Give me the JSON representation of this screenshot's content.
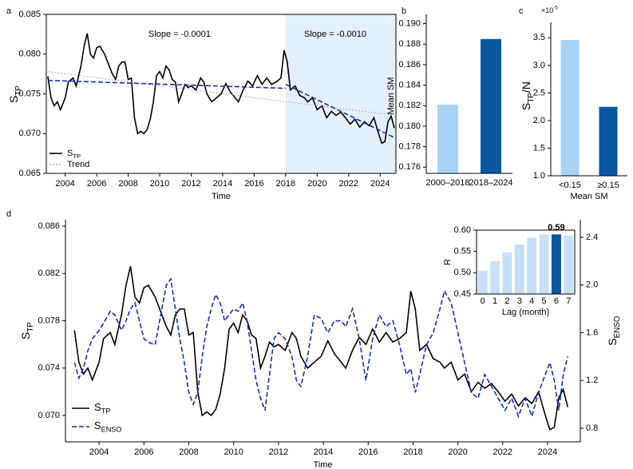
{
  "chart_data": [
    {
      "type": "line",
      "panel": "a",
      "xlabel": "Time",
      "ylabel": {
        "text": "S",
        "sub": "TP"
      },
      "annotations": [
        "Slope = -0.0001",
        "Slope = -0.0010"
      ],
      "xlim": [
        2002.8,
        2025.0
      ],
      "ylim": [
        0.065,
        0.085
      ],
      "xticks": [
        2004,
        2006,
        2008,
        2010,
        2012,
        2014,
        2016,
        2018,
        2020,
        2022,
        2024
      ],
      "yticks": [
        0.065,
        {
          "value": 0.07,
          "label": "0.070"
        },
        0.075,
        {
          "value": 0.08,
          "label": "0.080"
        },
        0.085
      ],
      "shade": [
        2018,
        2025
      ],
      "shade_color": "#e4f0fc",
      "x": [
        2002.9,
        2003.1,
        2003.3,
        2003.5,
        2003.7,
        2004.0,
        2004.2,
        2004.5,
        2004.7,
        2005.0,
        2005.2,
        2005.4,
        2005.6,
        2005.8,
        2006.0,
        2006.2,
        2006.5,
        2006.7,
        2007.0,
        2007.2,
        2007.4,
        2007.6,
        2007.8,
        2008.0,
        2008.2,
        2008.4,
        2008.6,
        2008.8,
        2009.0,
        2009.2,
        2009.4,
        2009.6,
        2009.8,
        2010.0,
        2010.2,
        2010.4,
        2010.6,
        2010.8,
        2011.0,
        2011.2,
        2011.4,
        2011.6,
        2011.8,
        2012.0,
        2012.3,
        2012.6,
        2012.8,
        2013.0,
        2013.3,
        2013.6,
        2013.9,
        2014.2,
        2014.5,
        2014.8,
        2015.0,
        2015.3,
        2015.6,
        2015.9,
        2016.2,
        2016.5,
        2016.8,
        2017.1,
        2017.4,
        2017.7,
        2017.9,
        2018.1,
        2018.3,
        2018.6,
        2018.9,
        2019.2,
        2019.4,
        2019.7,
        2020.0,
        2020.3,
        2020.6,
        2020.9,
        2021.2,
        2021.5,
        2021.8,
        2022.1,
        2022.4,
        2022.7,
        2023.0,
        2023.3,
        2023.6,
        2023.9,
        2024.1,
        2024.3,
        2024.5,
        2024.7,
        2024.9
      ],
      "series": [
        {
          "name": {
            "text": "S",
            "sub": "TP"
          },
          "color": "#000000",
          "style": "solid",
          "values": [
            0.0772,
            0.0745,
            0.0735,
            0.074,
            0.073,
            0.0745,
            0.0765,
            0.077,
            0.076,
            0.0785,
            0.081,
            0.0826,
            0.08,
            0.0795,
            0.0808,
            0.081,
            0.08,
            0.079,
            0.0775,
            0.0768,
            0.0785,
            0.079,
            0.079,
            0.0768,
            0.077,
            0.072,
            0.07,
            0.0703,
            0.07,
            0.0705,
            0.0718,
            0.074,
            0.0773,
            0.0778,
            0.077,
            0.0785,
            0.078,
            0.0768,
            0.0765,
            0.074,
            0.075,
            0.0762,
            0.0758,
            0.076,
            0.0755,
            0.077,
            0.0765,
            0.075,
            0.074,
            0.0745,
            0.075,
            0.0763,
            0.0752,
            0.0745,
            0.074,
            0.0755,
            0.0766,
            0.076,
            0.0773,
            0.0762,
            0.077,
            0.0762,
            0.0765,
            0.077,
            0.0805,
            0.079,
            0.0755,
            0.076,
            0.0748,
            0.0745,
            0.074,
            0.0745,
            0.073,
            0.0735,
            0.072,
            0.0728,
            0.0723,
            0.0727,
            0.072,
            0.0712,
            0.0718,
            0.0708,
            0.0715,
            0.071,
            0.072,
            0.07,
            0.0688,
            0.069,
            0.0715,
            0.0722,
            0.0707
          ]
        },
        {
          "name": "Trend",
          "color": "#aaaaaa",
          "style": "dotted",
          "x": [
            2002.9,
            2024.9
          ],
          "values": [
            0.0778,
            0.0723
          ]
        },
        {
          "color": "#1a2fa0",
          "style": "dashed",
          "x": [
            2002.9,
            2018.0
          ],
          "values": [
            0.0767,
            0.0757
          ]
        },
        {
          "color": "#1a2fa0",
          "style": "dashed",
          "x": [
            2018.0,
            2024.9
          ],
          "values": [
            0.0762,
            0.0695
          ]
        }
      ]
    },
    {
      "type": "bar",
      "panel": "b",
      "ylabel": "Mean SM",
      "categories": [
        "2000–2018",
        "2018–2024"
      ],
      "values": [
        0.1821,
        0.1885
      ],
      "colors": [
        "#a9d3f5",
        "#0b56a0"
      ],
      "ylim": [
        0.1754,
        0.1909
      ],
      "yticks": [
        0.176,
        0.178,
        {
          "value": 0.18,
          "label": "0.180"
        },
        0.182,
        0.184,
        0.186,
        0.188,
        {
          "value": 0.19,
          "label": "0.190"
        }
      ]
    },
    {
      "type": "bar",
      "panel": "c",
      "ylabel": {
        "text": "S",
        "sub": "TP",
        "after": "/N"
      },
      "xlabel": "Mean SM",
      "multiplier": {
        "text": "×10",
        "sup": "-5"
      },
      "categories": [
        "<0.15",
        "≥0.15"
      ],
      "values": [
        3.46,
        2.25
      ],
      "colors": [
        "#a9d3f5",
        "#0b56a0"
      ],
      "ylim": [
        1.0,
        3.78
      ],
      "yticks": [
        {
          "value": 1,
          "label": "1.0"
        },
        1.5,
        {
          "value": 2,
          "label": "2.0"
        },
        2.5,
        {
          "value": 3,
          "label": "3.0"
        },
        3.5
      ]
    },
    {
      "type": "line",
      "panel": "d",
      "xlabel": "Time",
      "ylabel": {
        "text": "S",
        "sub": "TP"
      },
      "y2label": {
        "text": "S",
        "sub": "ENSO"
      },
      "xlim": [
        2002.5,
        2025.46
      ],
      "ylim": [
        0.06777,
        0.08654
      ],
      "y2lim": [
        0.686,
        2.547
      ],
      "xticks": [
        2004,
        2006,
        2008,
        2010,
        2012,
        2014,
        2016,
        2018,
        2020,
        2022,
        2024
      ],
      "yticks": [
        {
          "value": 0.07,
          "label": "0.070"
        },
        0.074,
        0.078,
        0.082,
        0.086
      ],
      "y2ticks": [
        0.8,
        1.2,
        1.6,
        {
          "value": 2,
          "label": "2.0"
        },
        2.4
      ],
      "x": [
        2002.9,
        2003.1,
        2003.3,
        2003.5,
        2003.7,
        2004.0,
        2004.2,
        2004.5,
        2004.7,
        2005.0,
        2005.2,
        2005.4,
        2005.6,
        2005.8,
        2006.0,
        2006.2,
        2006.5,
        2006.7,
        2007.0,
        2007.2,
        2007.4,
        2007.6,
        2007.8,
        2008.0,
        2008.2,
        2008.4,
        2008.6,
        2008.8,
        2009.0,
        2009.2,
        2009.4,
        2009.6,
        2009.8,
        2010.0,
        2010.2,
        2010.4,
        2010.6,
        2010.8,
        2011.0,
        2011.2,
        2011.4,
        2011.6,
        2011.8,
        2012.0,
        2012.3,
        2012.6,
        2012.8,
        2013.0,
        2013.3,
        2013.6,
        2013.9,
        2014.2,
        2014.5,
        2014.8,
        2015.0,
        2015.3,
        2015.6,
        2015.9,
        2016.2,
        2016.5,
        2016.8,
        2017.1,
        2017.4,
        2017.7,
        2017.9,
        2018.1,
        2018.3,
        2018.6,
        2018.9,
        2019.2,
        2019.4,
        2019.7,
        2020.0,
        2020.3,
        2020.6,
        2020.9,
        2021.2,
        2021.5,
        2021.8,
        2022.1,
        2022.4,
        2022.7,
        2023.0,
        2023.3,
        2023.6,
        2023.9,
        2024.1,
        2024.3,
        2024.5,
        2024.7,
        2024.9
      ],
      "series": [
        {
          "name": {
            "text": "S",
            "sub": "TP"
          },
          "color": "#000000",
          "style": "solid",
          "values": [
            0.0772,
            0.0745,
            0.0735,
            0.074,
            0.073,
            0.0745,
            0.0765,
            0.077,
            0.076,
            0.0785,
            0.081,
            0.0826,
            0.08,
            0.0795,
            0.0808,
            0.081,
            0.08,
            0.079,
            0.0775,
            0.0768,
            0.0785,
            0.079,
            0.079,
            0.0768,
            0.077,
            0.072,
            0.07,
            0.0703,
            0.07,
            0.0705,
            0.0718,
            0.074,
            0.0773,
            0.0778,
            0.077,
            0.0785,
            0.078,
            0.0768,
            0.0765,
            0.074,
            0.075,
            0.0762,
            0.0758,
            0.076,
            0.0755,
            0.077,
            0.0765,
            0.075,
            0.074,
            0.0745,
            0.075,
            0.0763,
            0.0752,
            0.0745,
            0.074,
            0.0755,
            0.0766,
            0.076,
            0.0773,
            0.0762,
            0.077,
            0.0762,
            0.0765,
            0.077,
            0.0805,
            0.079,
            0.0755,
            0.076,
            0.0748,
            0.0745,
            0.074,
            0.0745,
            0.073,
            0.0735,
            0.072,
            0.0728,
            0.0723,
            0.0727,
            0.072,
            0.0712,
            0.0718,
            0.0708,
            0.0715,
            0.071,
            0.072,
            0.07,
            0.0688,
            0.069,
            0.0715,
            0.0722,
            0.0707
          ]
        },
        {
          "name": {
            "text": "S",
            "sub": "ENSO"
          },
          "color": "#1a2fa0",
          "style": "dashed",
          "axis": "y2",
          "values": [
            1.35,
            1.22,
            1.3,
            1.45,
            1.55,
            1.62,
            1.68,
            1.78,
            1.75,
            1.62,
            1.7,
            1.8,
            1.85,
            1.7,
            1.55,
            1.52,
            1.5,
            1.7,
            2.0,
            2.05,
            1.8,
            1.55,
            1.35,
            1.1,
            1.0,
            1.1,
            1.4,
            1.65,
            1.8,
            1.92,
            1.85,
            1.7,
            1.75,
            1.8,
            1.78,
            1.85,
            1.7,
            1.45,
            1.2,
            1.05,
            0.95,
            1.25,
            1.55,
            1.6,
            1.55,
            1.4,
            1.2,
            1.15,
            1.4,
            1.75,
            1.72,
            1.6,
            1.7,
            1.7,
            1.65,
            1.8,
            1.55,
            1.2,
            1.55,
            1.75,
            1.65,
            1.7,
            1.5,
            1.25,
            1.3,
            1.1,
            1.25,
            1.5,
            1.6,
            1.8,
            1.95,
            1.85,
            1.6,
            1.35,
            1.1,
            1.05,
            1.25,
            1.15,
            1.05,
            0.95,
            1.05,
            0.9,
            1.05,
            0.9,
            1.1,
            1.25,
            1.35,
            1.2,
            0.95,
            1.25,
            1.4
          ]
        }
      ]
    },
    {
      "type": "bar",
      "xlabel": "Lag (month)",
      "ylabel": "R",
      "categories": [
        "0",
        "1",
        "2",
        "3",
        "4",
        "5",
        "6",
        "7"
      ],
      "values": [
        0.505,
        0.527,
        0.548,
        0.566,
        0.582,
        0.59,
        0.59,
        0.587
      ],
      "value_labels": [
        null,
        null,
        null,
        null,
        null,
        null,
        "0.59",
        null
      ],
      "value_label_color": "#1a2fa0",
      "colors": [
        "#c6e0f7",
        "#c6e0f7",
        "#c6e0f7",
        "#c6e0f7",
        "#c6e0f7",
        "#c6e0f7",
        "#0b56a0",
        "#c6e0f7"
      ],
      "ylim": [
        0.45,
        0.6
      ],
      "yticks": [
        0.45,
        {
          "value": 0.5,
          "label": "0.50"
        },
        0.55,
        {
          "value": 0.6,
          "label": "0.60"
        }
      ]
    }
  ]
}
